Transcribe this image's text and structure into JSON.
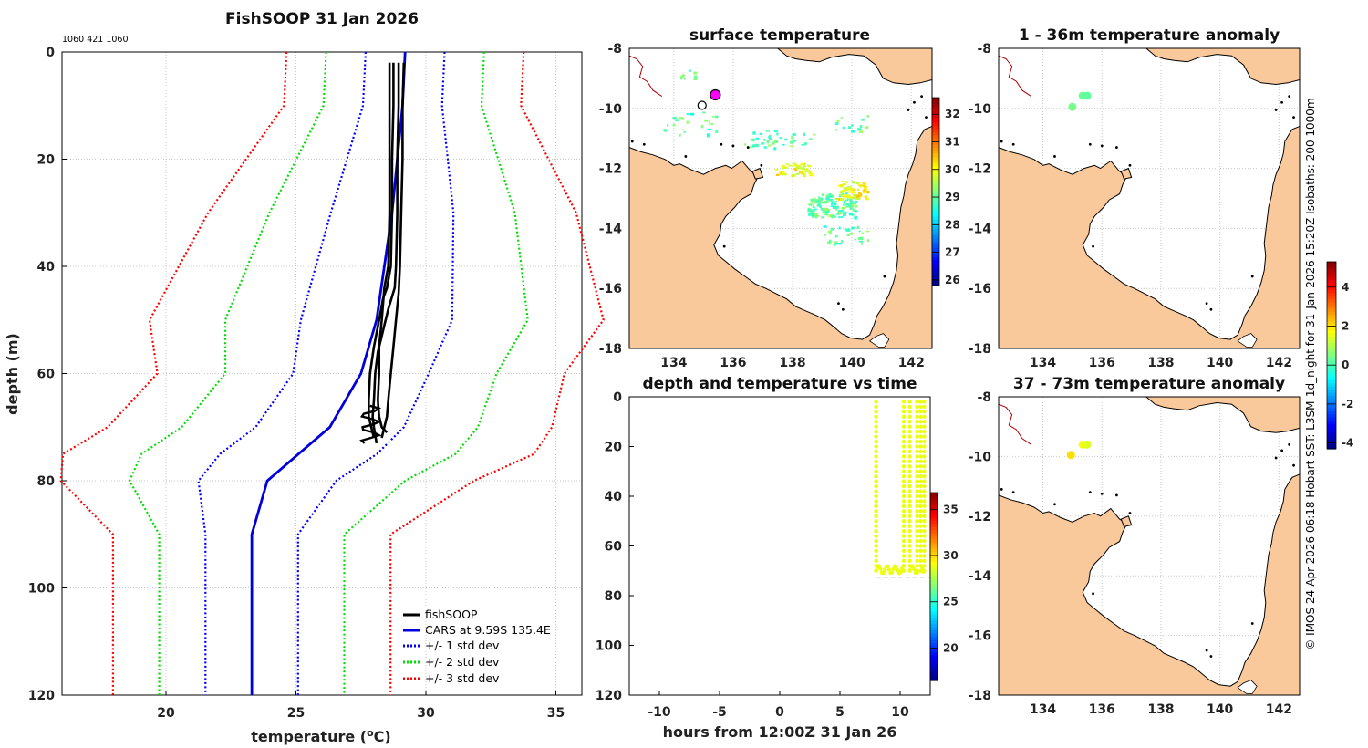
{
  "figure": {
    "main_title": "FishSOOP 31 Jan 2026",
    "ids_text": "1060 421 1060",
    "side_text": "© IMOS 24-Apr-2026 06:18 Hobart SST: L3SM-1d_night for 31-Jan-2026 15:20Z Isobaths: 200  1000m"
  },
  "colors": {
    "land": "#f9c89b",
    "profile": "#000000",
    "cars": "#0000dd",
    "std1": "#0000ff",
    "std2": "#00dd00",
    "std3": "#ff0000",
    "series_points": "#d8ef00",
    "grid": "#c8c8c8"
  },
  "chart_data": [
    {
      "id": "profile",
      "type": "line",
      "title": "",
      "xlabel": "temperature (°C)",
      "ylabel": "depth (m)",
      "xlim": [
        16,
        36
      ],
      "ylim": [
        0,
        120
      ],
      "y_reversed": true,
      "xticks": [
        20,
        25,
        30,
        35
      ],
      "yticks": [
        0,
        20,
        40,
        60,
        80,
        100,
        120
      ],
      "grid": true,
      "legend_position": "bottom-right",
      "legend": [
        {
          "label": "fishSOOP",
          "style": "solid",
          "color": "#000000"
        },
        {
          "label": "CARS at 9.59S 135.4E",
          "style": "solid",
          "color": "#0000dd"
        },
        {
          "label": "+/- 1 std dev",
          "style": "dotted",
          "color": "#0000ff"
        },
        {
          "label": "+/- 2 std dev",
          "style": "dotted",
          "color": "#00dd00"
        },
        {
          "label": "+/- 3 std dev",
          "style": "dotted",
          "color": "#ff0000"
        }
      ],
      "cars_depth": [
        0,
        10,
        30,
        50,
        60,
        70,
        75,
        80,
        90,
        120
      ],
      "cars_mean": [
        29.2,
        29.1,
        28.7,
        28.1,
        27.5,
        26.3,
        25.1,
        23.9,
        23.3,
        23.3
      ],
      "cars_std": [
        1.52,
        1.52,
        2.36,
        2.91,
        2.61,
        2.85,
        3.02,
        2.65,
        1.78,
        1.78
      ],
      "fishsoop_casts": [
        {
          "depth": [
            2,
            10,
            20,
            30,
            40,
            44,
            46,
            50,
            55,
            60,
            65,
            68,
            70,
            72
          ],
          "temp": [
            28.75,
            28.75,
            28.7,
            28.7,
            28.65,
            28.5,
            28.35,
            28.2,
            28.0,
            27.85,
            27.8,
            27.8,
            27.9,
            28.0
          ]
        },
        {
          "depth": [
            2,
            10,
            20,
            30,
            40,
            44,
            48,
            52,
            56,
            60,
            65,
            68,
            70,
            73
          ],
          "temp": [
            28.95,
            28.95,
            28.9,
            28.9,
            28.85,
            28.8,
            28.55,
            28.35,
            28.15,
            28.05,
            28.0,
            27.95,
            28.0,
            28.1
          ]
        },
        {
          "depth": [
            2,
            10,
            20,
            30,
            40,
            45,
            50,
            55,
            60,
            65,
            68,
            70,
            72
          ],
          "temp": [
            29.15,
            29.1,
            29.1,
            29.05,
            29.0,
            28.95,
            28.85,
            28.75,
            28.65,
            28.55,
            28.5,
            28.4,
            28.3
          ]
        },
        {
          "depth": [
            2,
            10,
            20,
            30,
            40,
            44,
            50,
            55,
            60,
            65,
            68,
            70,
            71
          ],
          "temp": [
            28.6,
            28.6,
            28.6,
            28.6,
            28.55,
            28.4,
            28.3,
            28.2,
            28.2,
            28.15,
            28.2,
            28.3,
            28.5
          ]
        }
      ]
    },
    {
      "id": "surface_temperature",
      "type": "heatmap",
      "title": "surface temperature",
      "xlim": [
        132.5,
        142.7
      ],
      "ylim": [
        -18,
        -8
      ],
      "xticks": [
        134,
        136,
        138,
        140,
        142
      ],
      "yticks": [
        -8,
        -10,
        -12,
        -14,
        -16,
        -18
      ],
      "colorbar": {
        "min": 25.8,
        "max": 32.6,
        "ticks": [
          26,
          27,
          28,
          29,
          30,
          31,
          32
        ]
      },
      "markers": [
        {
          "lon": 135.4,
          "lat": -9.55,
          "style": "magenta-dot"
        },
        {
          "lon": 134.95,
          "lat": -9.9,
          "style": "open-circle"
        }
      ]
    },
    {
      "id": "anomaly_1_36",
      "type": "heatmap",
      "title": "1 - 36m temperature anomaly",
      "xlim": [
        132.5,
        142.7
      ],
      "ylim": [
        -18,
        -8
      ],
      "xticks": [
        134,
        136,
        138,
        140,
        142
      ],
      "yticks": [
        -8,
        -10,
        -12,
        -14,
        -16,
        -18
      ],
      "points": [
        {
          "lon": 135.0,
          "lat": -9.95,
          "anomaly": 0.4
        },
        {
          "lon": 135.35,
          "lat": -9.58,
          "anomaly": 0.3
        },
        {
          "lon": 135.5,
          "lat": -9.58,
          "anomaly": 0.2
        }
      ]
    },
    {
      "id": "anomaly_37_73",
      "type": "heatmap",
      "title": "37 - 73m temperature anomaly",
      "xlim": [
        132.5,
        142.7
      ],
      "ylim": [
        -18,
        -8
      ],
      "xticks": [
        134,
        136,
        138,
        140,
        142
      ],
      "yticks": [
        -8,
        -10,
        -12,
        -14,
        -16,
        -18
      ],
      "points": [
        {
          "lon": 134.95,
          "lat": -9.95,
          "anomaly": 2.0
        },
        {
          "lon": 135.35,
          "lat": -9.6,
          "anomaly": 1.6
        },
        {
          "lon": 135.5,
          "lat": -9.6,
          "anomaly": 1.4
        }
      ],
      "colorbar": {
        "min": -4.3,
        "max": 5.3,
        "ticks": [
          -4,
          -2,
          0,
          2,
          4
        ]
      }
    },
    {
      "id": "depth_time",
      "type": "scatter",
      "title": "depth and temperature vs time",
      "xlabel": "hours from 12:00Z 31 Jan 26",
      "xlim": [
        -12.5,
        12.5
      ],
      "ylim": [
        0,
        120
      ],
      "y_reversed": true,
      "xticks": [
        -10,
        -5,
        0,
        5,
        10
      ],
      "yticks": [
        0,
        20,
        40,
        60,
        80,
        100,
        120
      ],
      "bottom_depth_line": 72.5,
      "colorbar": {
        "min": 16.5,
        "max": 36.8,
        "ticks": [
          20,
          25,
          30,
          35
        ]
      },
      "casts": [
        {
          "t_down": 8.0,
          "t_bottom_end": 10.3,
          "t_up": 10.3
        },
        {
          "t_down": 10.8,
          "t_bottom_end": 11.4,
          "t_up": 11.4
        },
        {
          "t_down": 11.7,
          "t_bottom_end": 12.0,
          "t_up": 12.0
        }
      ],
      "temperature_value": 28.8
    }
  ]
}
